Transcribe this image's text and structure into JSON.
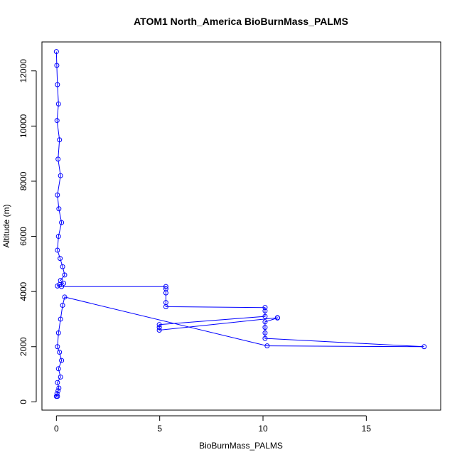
{
  "chart_data": {
    "type": "scatter",
    "title": "ATOM1 North_America BioBurnMass_PALMS",
    "xlabel": "BioBurnMass_PALMS",
    "ylabel": "Altitude (m)",
    "xlim": [
      -0.7,
      18.6
    ],
    "ylim": [
      -300,
      13050
    ],
    "x_ticks": [
      0,
      5,
      10,
      15
    ],
    "y_ticks": [
      0,
      2000,
      4000,
      6000,
      8000,
      10000,
      12000
    ],
    "grid": false,
    "legend": "none",
    "point_style": "open-circle",
    "connect_points": true,
    "series": [
      {
        "color": "#0000ff",
        "x": [
          0.0,
          0.02,
          0.05,
          0.1,
          0.03,
          0.15,
          0.08,
          0.2,
          0.05,
          0.12,
          0.25,
          0.1,
          0.05,
          0.18,
          0.3,
          0.4,
          0.2,
          0.35,
          0.15,
          0.05,
          0.25,
          5.3,
          5.3,
          5.3,
          5.3,
          5.3,
          10.1,
          10.1,
          10.1,
          4.98,
          4.98,
          4.98,
          10.7,
          10.7,
          10.7,
          10.1,
          10.1,
          10.1,
          10.1,
          17.8,
          10.2,
          0.4,
          0.3,
          0.2,
          0.1,
          0.05,
          0.15,
          0.25,
          0.1,
          0.2,
          0.05,
          0.12,
          0.08,
          0.03,
          0.0,
          0.05
        ],
        "y": [
          12700,
          12200,
          11500,
          10800,
          10200,
          9500,
          8800,
          8200,
          7500,
          7000,
          6500,
          6000,
          5500,
          5200,
          4900,
          4600,
          4400,
          4300,
          4250,
          4200,
          4180,
          4180,
          4100,
          3950,
          3600,
          3450,
          3420,
          3300,
          3100,
          2800,
          2700,
          2600,
          3050,
          3050,
          3040,
          2900,
          2700,
          2500,
          2300,
          2000,
          2030,
          3800,
          3500,
          3000,
          2500,
          2000,
          1800,
          1500,
          1200,
          900,
          700,
          500,
          400,
          300,
          200,
          200
        ]
      }
    ]
  }
}
